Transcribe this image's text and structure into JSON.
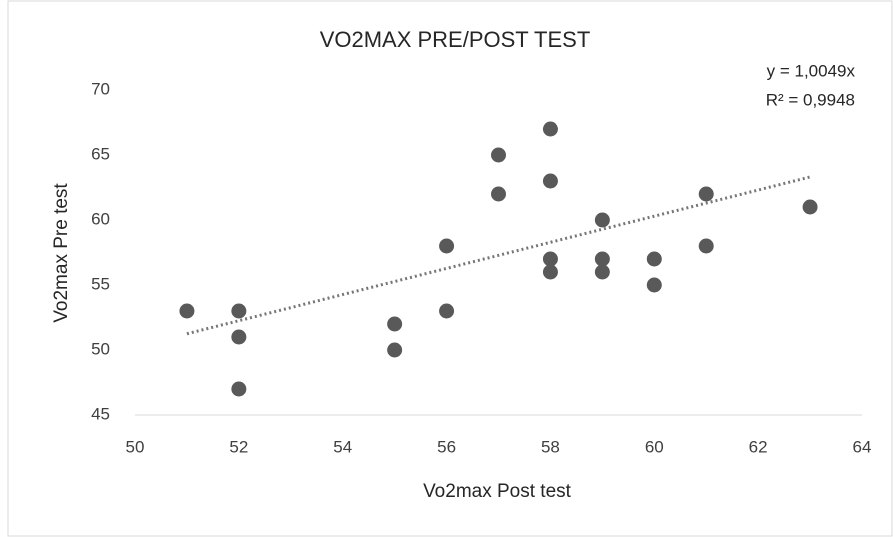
{
  "chart_data": {
    "type": "scatter",
    "title": "VO2MAX  PRE/POST TEST",
    "xlabel": "Vo2max Post  test",
    "ylabel": "Vo2max Pre test",
    "annotations": [
      "y = 1,0049x",
      "R² = 0,9948"
    ],
    "series": [
      {
        "name": "Vo2max",
        "color": "#595959",
        "x": [
          51,
          52,
          52,
          52,
          55,
          55,
          56,
          56,
          57,
          57,
          58,
          58,
          58,
          58,
          59,
          59,
          59,
          60,
          60,
          61,
          61,
          63
        ],
        "values": [
          53,
          53,
          51,
          47,
          52,
          50,
          58,
          53,
          65,
          62,
          67,
          63,
          57,
          56,
          60,
          57,
          56,
          57,
          55,
          62,
          58,
          61
        ]
      }
    ],
    "trendline": {
      "color": "#767676",
      "x": [
        51,
        63
      ],
      "values": [
        51.25,
        63.31
      ]
    },
    "xlim": [
      50,
      64
    ],
    "xticks": [
      50,
      52,
      54,
      56,
      58,
      60,
      62,
      64
    ],
    "ylim": [
      45,
      70
    ],
    "yticks": [
      45,
      50,
      55,
      60,
      65,
      70
    ]
  }
}
